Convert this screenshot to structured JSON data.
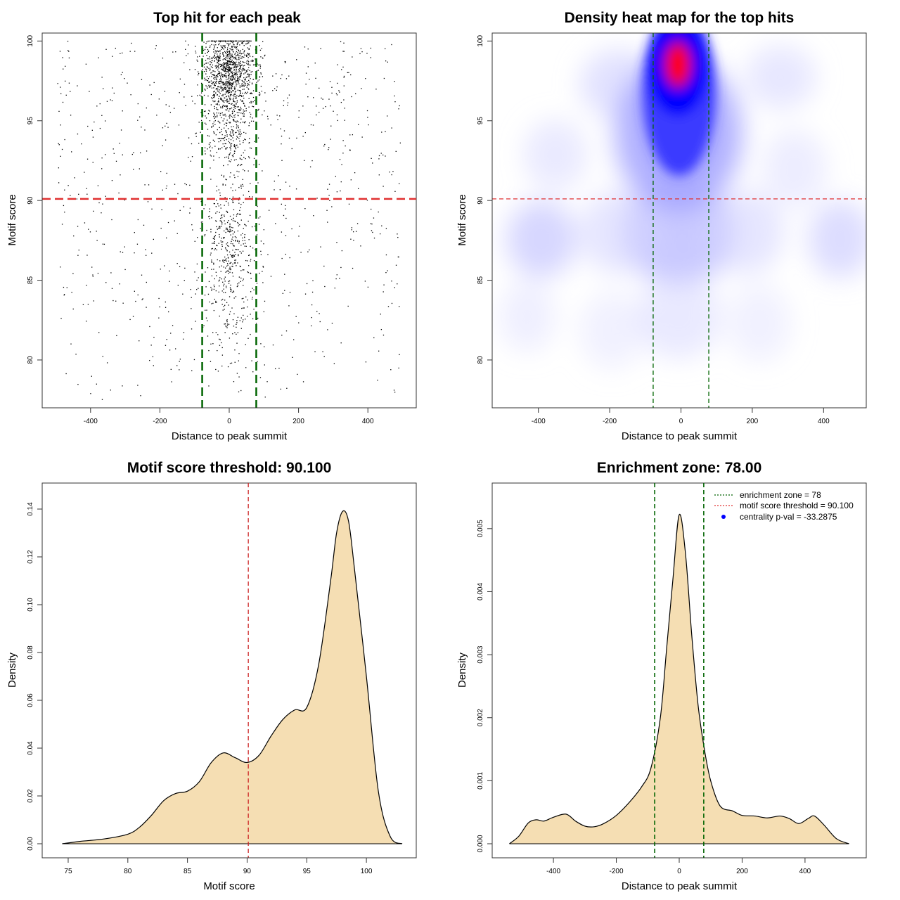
{
  "chart_data": [
    {
      "id": "scatter",
      "type": "scatter",
      "title": "Top hit for each peak",
      "xlabel": "Distance to peak summit",
      "ylabel": "Motif score",
      "xlim": [
        -500,
        500
      ],
      "ylim": [
        77,
        100.5
      ],
      "xticks": [
        -400,
        -200,
        0,
        200,
        400
      ],
      "yticks": [
        80,
        85,
        90,
        95,
        100
      ],
      "hline": {
        "y": 90.1,
        "color": "#e03030",
        "style": "dashed"
      },
      "vlines": [
        {
          "x": -78,
          "color": "#006400",
          "style": "dashed"
        },
        {
          "x": 78,
          "color": "#006400",
          "style": "dashed"
        }
      ],
      "approx_point_count": 2600
    },
    {
      "id": "heatmap",
      "type": "heatmap",
      "title": "Density heat map for the top hits",
      "xlabel": "Distance to peak summit",
      "ylabel": "Motif score",
      "xlim": [
        -500,
        500
      ],
      "ylim": [
        77,
        100.5
      ],
      "xticks": [
        -400,
        -200,
        0,
        200,
        400
      ],
      "yticks": [
        80,
        85,
        90,
        95,
        100
      ],
      "colors": [
        "#ffffff",
        "#0000ff",
        "#ff0000"
      ],
      "peak": {
        "x": 0,
        "y": 98
      },
      "hline": {
        "y": 90.1,
        "color": "#e03030",
        "style": "dashed"
      },
      "vlines": [
        {
          "x": -78,
          "color": "#006400",
          "style": "dashed"
        },
        {
          "x": 78,
          "color": "#006400",
          "style": "dashed"
        }
      ]
    },
    {
      "id": "score-density",
      "type": "area",
      "title": "Motif score threshold: 90.100",
      "xlabel": "Motif score",
      "ylabel": "Density",
      "xlim": [
        74,
        103
      ],
      "ylim": [
        0,
        0.145
      ],
      "xticks": [
        75,
        80,
        85,
        90,
        95,
        100
      ],
      "yticks": [
        0.0,
        0.02,
        0.04,
        0.06,
        0.08,
        0.1,
        0.12,
        0.14
      ],
      "ytick_labels": [
        "0.00",
        "0.02",
        "0.04",
        "0.06",
        "0.08",
        "0.10",
        "0.12",
        "0.14"
      ],
      "fill": "#f5deb3",
      "x": [
        74.5,
        76,
        78,
        80,
        81,
        82,
        83,
        84,
        85,
        86,
        87,
        88,
        89,
        90,
        91,
        92,
        93,
        94,
        95,
        96,
        97,
        97.5,
        98,
        98.5,
        99,
        100,
        101,
        102,
        103
      ],
      "y": [
        0.0,
        0.001,
        0.002,
        0.004,
        0.007,
        0.012,
        0.018,
        0.021,
        0.022,
        0.026,
        0.034,
        0.038,
        0.036,
        0.034,
        0.037,
        0.045,
        0.052,
        0.056,
        0.057,
        0.075,
        0.11,
        0.13,
        0.139,
        0.135,
        0.115,
        0.07,
        0.022,
        0.003,
        0.0
      ],
      "vline": {
        "x": 90.1,
        "color": "#cc2222",
        "style": "dashed"
      }
    },
    {
      "id": "distance-density",
      "type": "area",
      "title": "Enrichment zone: 78.00",
      "xlabel": "Distance to peak summit",
      "ylabel": "Density",
      "xlim": [
        -550,
        550
      ],
      "ylim": [
        0,
        0.0055
      ],
      "xticks": [
        -400,
        -200,
        0,
        200,
        400
      ],
      "yticks": [
        0.0,
        0.001,
        0.002,
        0.003,
        0.004,
        0.005
      ],
      "ytick_labels": [
        "0.000",
        "0.001",
        "0.002",
        "0.003",
        "0.004",
        "0.005"
      ],
      "fill": "#f5deb3",
      "x": [
        -540,
        -510,
        -480,
        -455,
        -430,
        -400,
        -360,
        -330,
        -300,
        -270,
        -240,
        -200,
        -160,
        -120,
        -90,
        -60,
        -40,
        -20,
        0,
        20,
        40,
        60,
        80,
        100,
        130,
        170,
        200,
        240,
        280,
        320,
        350,
        380,
        410,
        430,
        460,
        500,
        540
      ],
      "y": [
        0.0,
        0.00012,
        0.00033,
        0.00038,
        0.00036,
        0.00042,
        0.00047,
        0.00036,
        0.00028,
        0.00027,
        0.00032,
        0.00045,
        0.00065,
        0.0009,
        0.0012,
        0.002,
        0.0031,
        0.0042,
        0.00522,
        0.0046,
        0.0033,
        0.0022,
        0.0015,
        0.001,
        0.0006,
        0.00052,
        0.00045,
        0.00044,
        0.00041,
        0.00044,
        0.0004,
        0.00032,
        0.0004,
        0.00044,
        0.0003,
        8e-05,
        0.0
      ],
      "vlines": [
        {
          "x": -78,
          "color": "#006400",
          "style": "dashed"
        },
        {
          "x": 78,
          "color": "#006400",
          "style": "dashed"
        }
      ],
      "legend": {
        "position": "top-right",
        "items": [
          {
            "label": "enrichment zone = 78",
            "color": "#006400",
            "kind": "dotted-line"
          },
          {
            "label": "motif score threshold = 90.100",
            "color": "#e03030",
            "kind": "dotted-line"
          },
          {
            "label": "centrality p-val = -33.2875",
            "color": "#0000ff",
            "kind": "point"
          }
        ]
      }
    }
  ]
}
